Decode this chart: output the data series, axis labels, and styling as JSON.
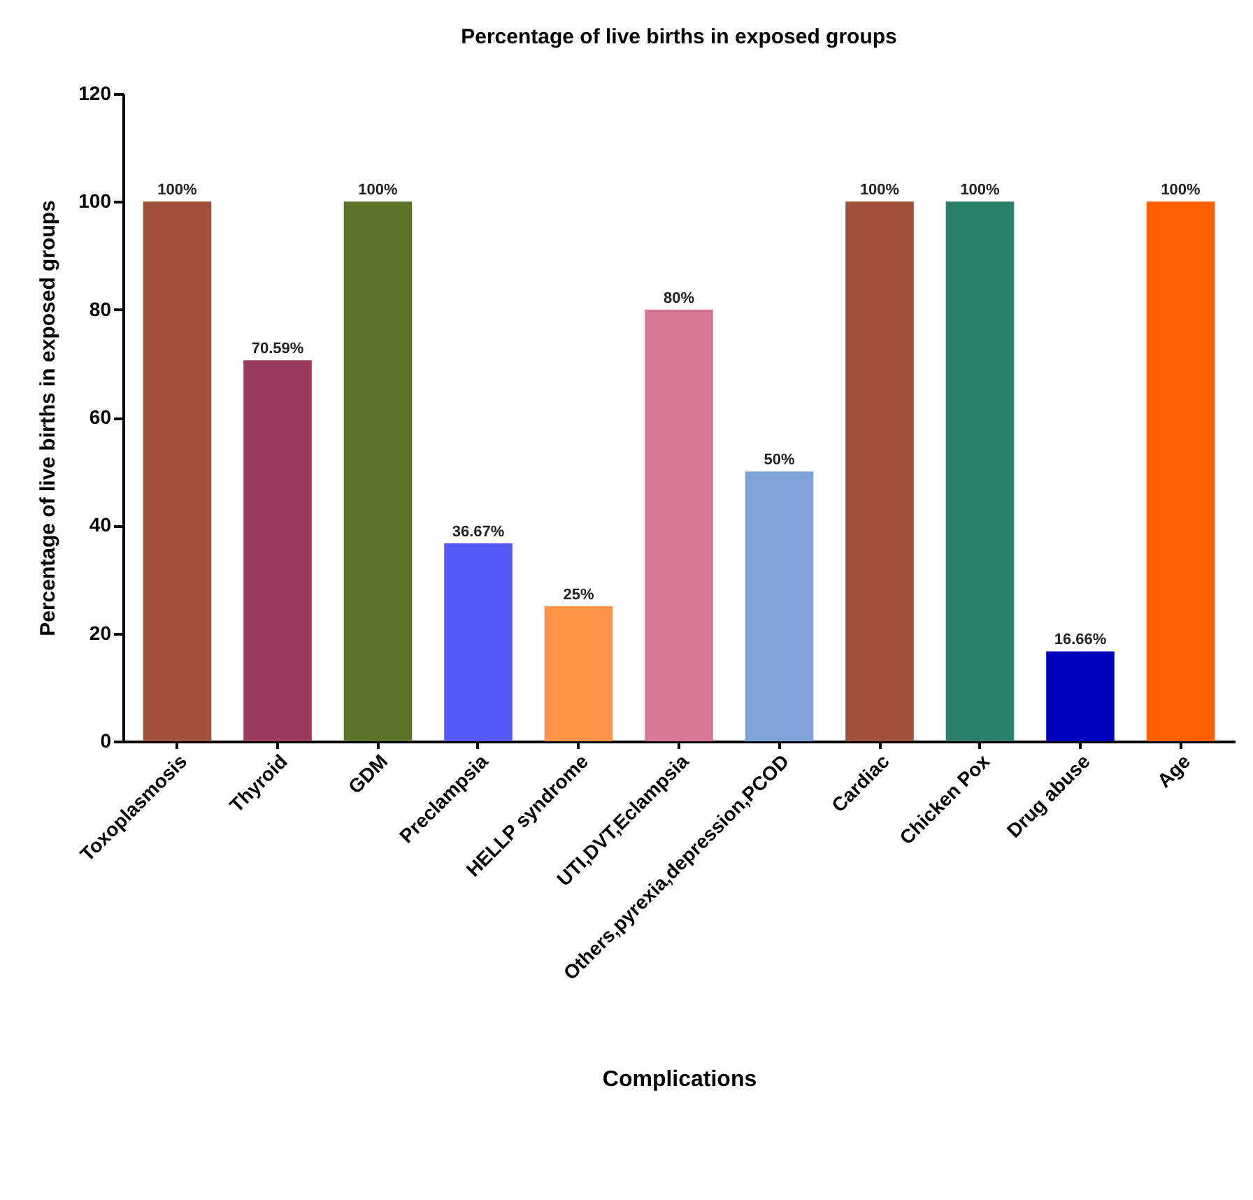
{
  "chart_data": {
    "type": "bar",
    "title": "Percentage of live births in exposed groups",
    "xlabel": "Complications",
    "ylabel": "Percentage of live births in exposed groups",
    "categories": [
      "Toxoplasmosis",
      "Thyroid",
      "GDM",
      "Preclampsia",
      "HELLP syndrome",
      "UTI,DVT,Eclampsia",
      "Others,pyrexia,depression,PCOD",
      "Cardiac",
      "Chicken Pox",
      "Drug abuse",
      "Age"
    ],
    "values": [
      100,
      70.59,
      100,
      36.67,
      25,
      80,
      50,
      100,
      100,
      16.66,
      100
    ],
    "colors": [
      "#a0513a",
      "#9b3a5c",
      "#5b742c",
      "#5757f5",
      "#fd9446",
      "#d77795",
      "#7fa3d6",
      "#a0513a",
      "#2a7f69",
      "#0000c0",
      "#ff5f00"
    ],
    "value_labels": [
      "100%",
      "70.59%",
      "100%",
      "36.67%",
      "25%",
      "80%",
      "50%",
      "100%",
      "100%",
      "16.66%",
      "100%"
    ],
    "ylim": [
      0,
      120
    ],
    "yticks": [
      0,
      20,
      40,
      60,
      80,
      100,
      120
    ],
    "grid": false
  }
}
